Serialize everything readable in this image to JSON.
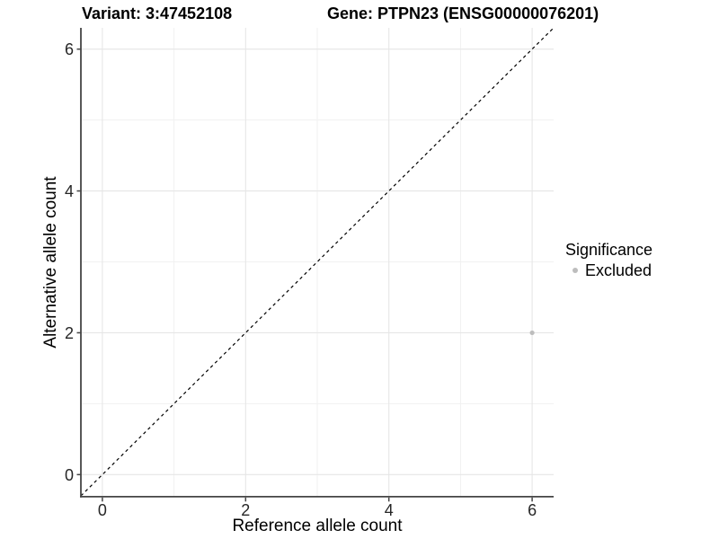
{
  "header": {
    "variant_title": "Variant: 3:47452108",
    "gene_title": "Gene: PTPN23 (ENSG00000076201)"
  },
  "legend": {
    "title": "Significance",
    "items": [
      {
        "label": "Excluded",
        "color": "#bdbdbd"
      }
    ]
  },
  "chart_data": {
    "type": "scatter",
    "titles": [
      "Variant: 3:47452108",
      "Gene: PTPN23 (ENSG00000076201)"
    ],
    "xlabel": "Reference allele count",
    "ylabel": "Alternative allele count",
    "xlim": [
      -0.3,
      6.3
    ],
    "ylim": [
      -0.3,
      6.3
    ],
    "x_ticks": [
      0,
      2,
      4,
      6
    ],
    "y_ticks": [
      0,
      2,
      4,
      6
    ],
    "x_minor_ticks": [
      1,
      3,
      5
    ],
    "y_minor_ticks": [
      1,
      3,
      5
    ],
    "grid": true,
    "legend_position": "right",
    "series": [
      {
        "name": "Excluded",
        "color": "#bdbdbd",
        "points": [
          {
            "x": 6,
            "y": 2
          }
        ]
      }
    ],
    "reference_line": {
      "type": "identity",
      "slope": 1,
      "intercept": 0,
      "style": "dashed",
      "color": "#000000"
    }
  },
  "colors": {
    "background": "#ffffff",
    "grid_major": "#e6e6e6",
    "grid_minor": "#f1f1f1",
    "axis_line": "#454545",
    "tick_mark": "#454545",
    "tick_label": "#262626",
    "point": "#bdbdbd"
  }
}
